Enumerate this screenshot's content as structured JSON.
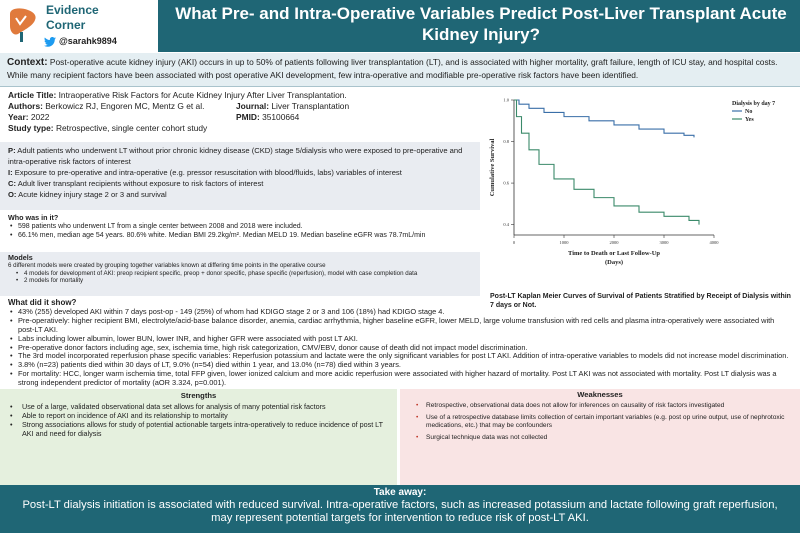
{
  "brand": {
    "line1": "Evidence",
    "line2": "Corner",
    "handle": "@sarahk9894"
  },
  "title": "What Pre- and Intra-Operative Variables Predict Post-Liver Transplant Acute Kidney Injury?",
  "context": {
    "label": "Context:",
    "text": "Post-operative  acute kidney injury (AKI) occurs in up to 50% of patients following liver transplantation (LT), and is associated with higher mortality, graft failure, length of ICU stay, and hospital costs. While many recipient factors have been associated with post operative AKI development,  few intra-operative and modifiable pre-operative  risk factors have been identified."
  },
  "article": {
    "title_label": "Article Title:",
    "title_value": "Intraoperative  Risk Factors for Acute Kidney Injury After Liver Transplantation.",
    "authors_label": "Authors:",
    "authors_value": "Berkowicz RJ, Engoren MC, Mentz G et al.",
    "journal_label": "Journal:",
    "journal_value": "Liver Transplantation",
    "year_label": "Year:",
    "year_value": "2022",
    "pmid_label": "PMID:",
    "pmid_value": "35100664",
    "study_label": "Study type:",
    "study_value": "Retrospective,  single center cohort study"
  },
  "pico": [
    {
      "label": "P:",
      "text": "Adult patients who underwent LT without prior chronic kidney disease (CKD) stage 5/dialysis who were exposed to pre-operative and intra-operative risk factors of interest"
    },
    {
      "label": "I:",
      "text": "Exposure to pre-operative and intra-operative (e.g. pressor resuscitation with blood/fluids, labs) variables of interest"
    },
    {
      "label": "C:",
      "text": "Adult liver transplant recipients without exposure to risk factors of interest"
    },
    {
      "label": "O:",
      "text": "Acute kidney injury stage 2 or 3 and survival"
    }
  ],
  "who": {
    "heading": "Who was in it?",
    "items": [
      "598 patients who underwent LT from a single center between  2008 and 2018 were included.",
      "66.1% men, median age 54 years. 80.6% white. Median BMI 29.2kg/m². Median MELD 19. Median baseline eGFR was 78.7mL/min"
    ]
  },
  "models": {
    "heading": "Models",
    "intro": "6 different models were created by grouping together variables known at differing time points in the operative course",
    "items": [
      "4 models for development of AKI: preop recipient specific, preop + donor specific, phase specific (reperfusion), model with case completion data",
      "2 models for mortality"
    ]
  },
  "results": {
    "heading": "What did it show?",
    "items": [
      "43% (255) developed AKI within 7 days post-op - 149 (25%) of whom had KDIGO stage 2 or 3 and 106 (18%) had KDIGO stage 4.",
      "Pre-operatively: higher recipient BMI, electrolyte/acid-base balance disorder, anemia,  cardiac arrhythmia, higher baseline eGFR, lower MELD, large volume transfusion with red cells and plasma intra-operatively were associated with post-LT AKI.",
      "Labs including lower albumin, lower BUN, lower INR, and higher GFR were associated with post LT AKI.",
      "Pre-operative donor factors including age, sex, ischemia time, high risk categorization, CMV/EBV, donor cause of death did not impact model discrimination.",
      "The 3rd model incorporated reperfusion phase specific variables: Reperfusion potassium and lactate were the only significant variables for post LT AKI. Addition of intra-operative variables to models did not increase model discrimination.",
      "3.8% (n=23) patients died within 30 days of LT, 9.0% (n=54) died within 1 year, and 13.0% (n=78) died within 3 years.",
      "For mortality: HCC, longer warm ischemia time, total FFP given, lower ionized calcium and more acidic reperfusion were associated with higher hazard of mortality. Post LT AKI was not associated with mortality. Post LT dialysis was a strong independent predictor of mortality (aOR 3.324, p=0.001)."
    ]
  },
  "strengths": {
    "heading": "Strengths",
    "items": [
      "Use of a large, validated observational data set allows for analysis of many potential risk factors",
      "Able to report on incidence of AKI and its relationship to mortality",
      "Strong associations allows for study of potential actionable targets intra-operatively to reduce incidence of post LT AKI and need for dialysis"
    ]
  },
  "weaknesses": {
    "heading": "Weaknesses",
    "items": [
      "Retrospective, observational data does not allow for inferences on causality of risk factors investigated",
      "Use of a retrospective database limits collection of certain important variables (e.g. post op urine output, use of nephrotoxic medications, etc.) that may be confounders",
      "Surgical technique data was not collected"
    ]
  },
  "takeaway": {
    "heading": "Take away:",
    "text": "Post-LT dialysis initiation is associated with reduced survival. Intra-operative factors, such as increased potassium and lactate following graft reperfusion, may represent potential targets for intervention to reduce risk of post-LT AKI."
  },
  "chart_caption": "Post-LT Kaplan Meier Curves of Survival of Patients Stratified by Receipt of Dialysis within 7 days or Not.",
  "chart_data": {
    "type": "line",
    "xlabel": "Time to Death or Last Follow-Up (Days)",
    "xlabel_line1": "Time to Death or Last Follow-Up",
    "xlabel_line2": "(Days)",
    "ylabel": "Cumulative Survival",
    "xlim": [
      0,
      4000
    ],
    "ylim": [
      0.35,
      1.0
    ],
    "x_ticks": [
      0,
      1000,
      2000,
      3000,
      4000
    ],
    "x_tick_labels": [
      "0",
      "1000",
      "2000",
      "3000",
      "4000"
    ],
    "y_ticks": [
      0.4,
      0.6,
      0.8,
      1.0
    ],
    "y_tick_labels": [
      "0.4",
      "0.6",
      "0.8",
      "1.0"
    ],
    "legend_title": "Dialysis by day 7",
    "legend_position": "top-right",
    "series": [
      {
        "name": "No",
        "color": "#3a6fa8",
        "x": [
          0,
          100,
          300,
          600,
          1000,
          1500,
          2000,
          2500,
          3000,
          3400,
          3600
        ],
        "y": [
          1.0,
          0.98,
          0.96,
          0.94,
          0.92,
          0.9,
          0.88,
          0.86,
          0.84,
          0.83,
          0.82
        ]
      },
      {
        "name": "Yes",
        "color": "#3b8a6a",
        "x": [
          0,
          50,
          150,
          300,
          500,
          800,
          1200,
          1600,
          2000,
          2500,
          3000,
          3500,
          3700
        ],
        "y": [
          1.0,
          0.92,
          0.84,
          0.76,
          0.69,
          0.62,
          0.57,
          0.53,
          0.49,
          0.46,
          0.44,
          0.42,
          0.4
        ]
      }
    ]
  }
}
